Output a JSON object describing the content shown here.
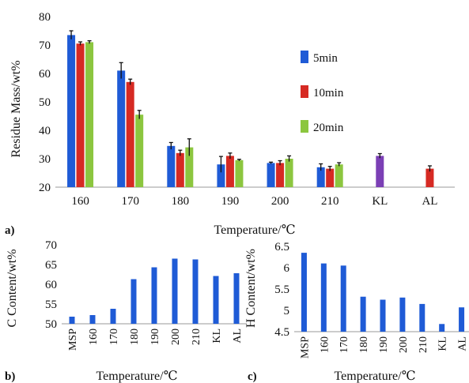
{
  "colors": {
    "series_5min": "#1f5bd6",
    "series_10min": "#d62a23",
    "series_20min": "#8cc63f",
    "kl_bar": "#7b3fb5",
    "al_bar": "#d62a23",
    "panel_b_bar": "#1f5bd6",
    "panel_c_bar": "#1f5bd6",
    "error_bar": "#111111"
  },
  "chart_data": [
    {
      "panel": "a)",
      "type": "bar",
      "categories": [
        "160",
        "170",
        "180",
        "190",
        "200",
        "210",
        "KL",
        "AL"
      ],
      "series": [
        {
          "name": "5min",
          "values": [
            73.5,
            61,
            34.5,
            28,
            28.5,
            27,
            null,
            null
          ],
          "errors": [
            1.5,
            2.8,
            1.2,
            2.8,
            0.3,
            1.2,
            null,
            null
          ]
        },
        {
          "name": "10min",
          "values": [
            70.5,
            57,
            32,
            31,
            28.5,
            26.5,
            null,
            null
          ],
          "errors": [
            0.6,
            1.0,
            1.0,
            1.0,
            0.8,
            0.8,
            null,
            null
          ]
        },
        {
          "name": "20min",
          "values": [
            71,
            45.5,
            34,
            29.5,
            30,
            28,
            null,
            null
          ],
          "errors": [
            0.5,
            1.5,
            3.0,
            0.3,
            1.0,
            0.6,
            null,
            null
          ]
        }
      ],
      "extra_bars": [
        {
          "category": "KL",
          "value": 31,
          "error": 0.8,
          "color_key": "kl_bar"
        },
        {
          "category": "AL",
          "value": 26.5,
          "error": 1.0,
          "color_key": "al_bar"
        }
      ],
      "xlabel": "Temperature/℃",
      "ylabel": "Residue Mass/wt%",
      "ylim": [
        20,
        80
      ],
      "yticks": [
        "20",
        "30",
        "40",
        "50",
        "60",
        "70",
        "80"
      ],
      "grid": false,
      "legend_position": "right"
    },
    {
      "panel": "b)",
      "type": "bar",
      "categories": [
        "MSP",
        "160",
        "170",
        "180",
        "190",
        "200",
        "210",
        "KL",
        "AL"
      ],
      "values": [
        51.8,
        52.2,
        53.8,
        61.3,
        64.3,
        66.5,
        66.3,
        62.1,
        62.8
      ],
      "xlabel": "Temperature/℃",
      "ylabel": "C Content/wt%",
      "ylim": [
        50,
        70
      ],
      "yticks": [
        "50",
        "55",
        "60",
        "65",
        "70"
      ],
      "grid": false
    },
    {
      "panel": "c)",
      "type": "bar",
      "categories": [
        "MSP",
        "160",
        "170",
        "180",
        "190",
        "200",
        "210",
        "KL",
        "AL"
      ],
      "values": [
        6.35,
        6.1,
        6.05,
        5.32,
        5.25,
        5.3,
        5.15,
        4.68,
        5.07
      ],
      "xlabel": "Temperature/℃",
      "ylabel": "H Content/wt%",
      "ylim": [
        4.5,
        6.5
      ],
      "yticks": [
        "4.5",
        "5",
        "5.5",
        "6",
        "6.5"
      ],
      "grid": false
    }
  ]
}
